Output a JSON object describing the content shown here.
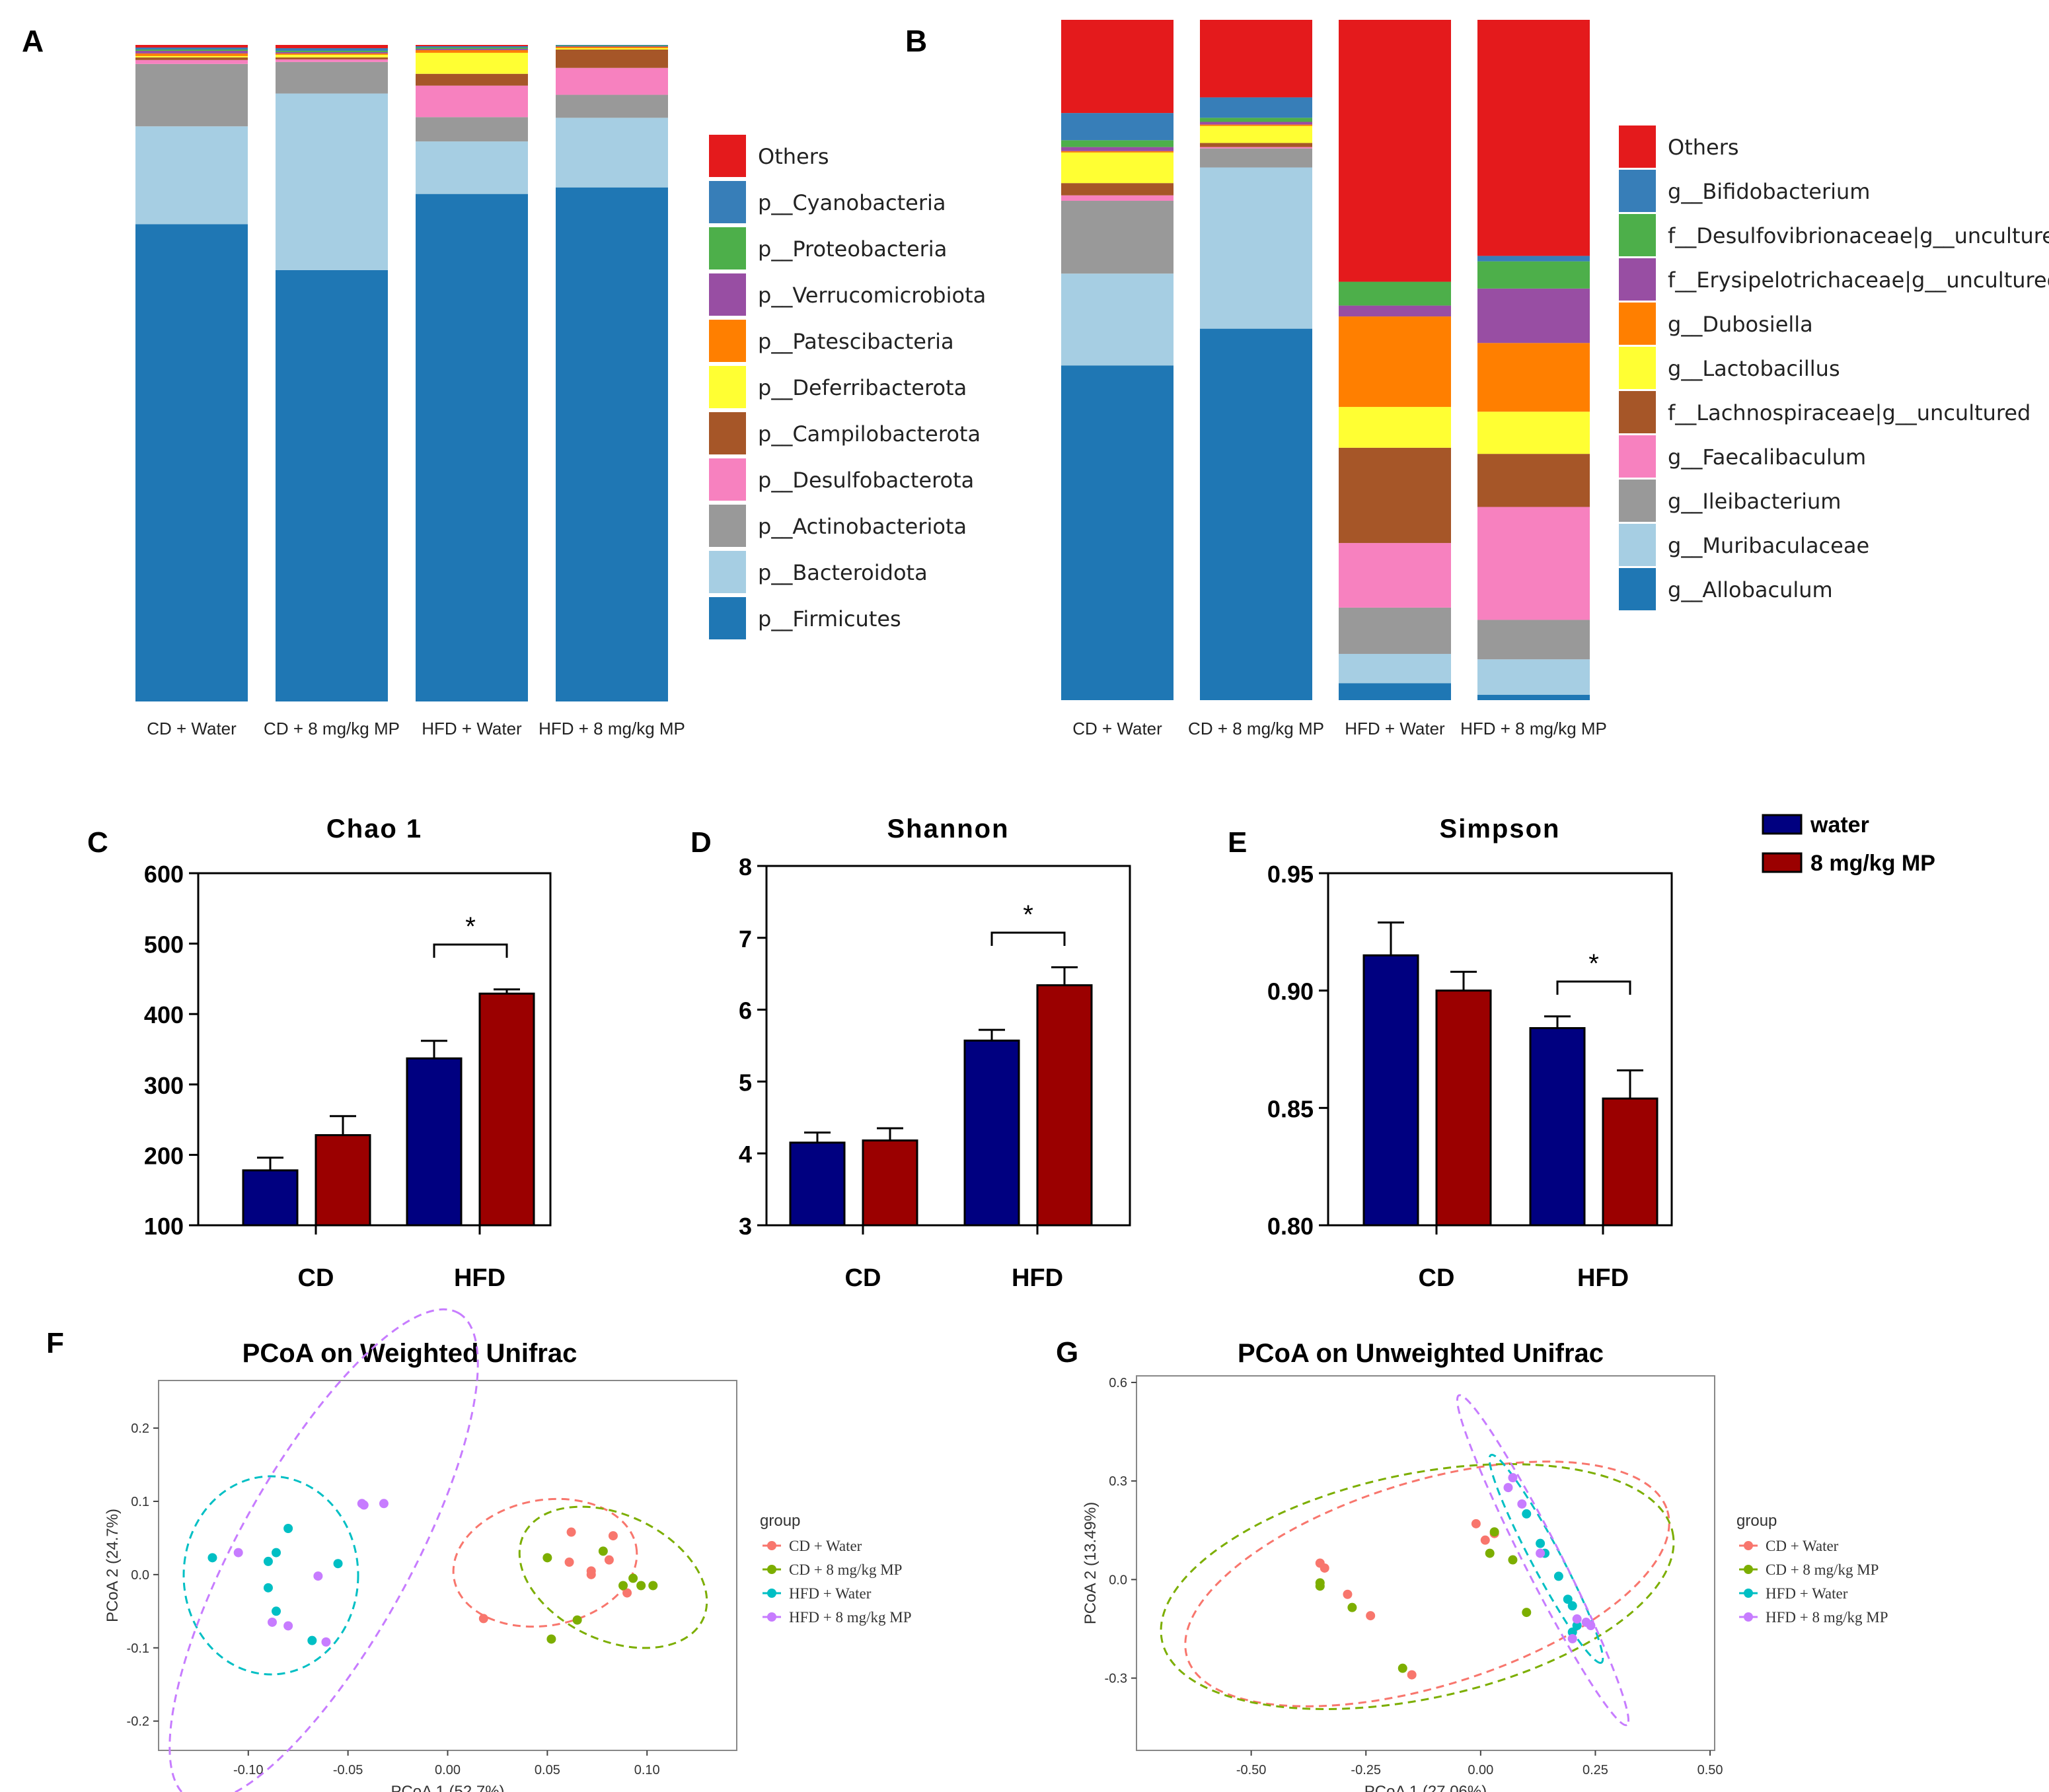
{
  "colors": {
    "water": "#000080",
    "mp": "#9b0000",
    "phylum": [
      "#1f77b4",
      "#a6cee3",
      "#999999",
      "#f781bf",
      "#a65628",
      "#ffff33",
      "#ff7f00",
      "#984ea3",
      "#4daf4a",
      "#377eb8",
      "#e41a1c"
    ],
    "genus": [
      "#1f77b4",
      "#a6cee3",
      "#999999",
      "#f781bf",
      "#a65628",
      "#ffff33",
      "#ff7f00",
      "#984ea3",
      "#4daf4a",
      "#377eb8",
      "#e41a1c"
    ],
    "pcoa": [
      "#f8766d",
      "#7cae00",
      "#00bfc4",
      "#c77cff"
    ]
  },
  "chart_data": [
    {
      "panel": "A",
      "type": "bar",
      "stacked": true,
      "categories": [
        "CD + Water",
        "CD + 8 mg/kg MP",
        "HFD + Water",
        "HFD + 8 mg/kg MP"
      ],
      "legend": [
        "Others",
        "p__Cyanobacteria",
        "p__Proteobacteria",
        "p__Verrucomicrobiota",
        "p__Patescibacteria",
        "p__Deferribacterota",
        "p__Campilobacterota",
        "p__Desulfobacterota",
        "p__Actinobacteriota",
        "p__Bacteroidota",
        "p__Firmicutes"
      ],
      "series": [
        {
          "name": "p__Firmicutes",
          "values": [
            0.727,
            0.657,
            0.773,
            0.783
          ]
        },
        {
          "name": "p__Bacteroidota",
          "values": [
            0.149,
            0.269,
            0.08,
            0.106
          ]
        },
        {
          "name": "p__Actinobacteriota",
          "values": [
            0.095,
            0.048,
            0.037,
            0.035
          ]
        },
        {
          "name": "p__Desulfobacterota",
          "values": [
            0.006,
            0.004,
            0.048,
            0.041
          ]
        },
        {
          "name": "p__Campilobacterota",
          "values": [
            0.004,
            0.003,
            0.018,
            0.028
          ]
        },
        {
          "name": "p__Deferribacterota",
          "values": [
            0.002,
            0.004,
            0.032,
            0.002
          ]
        },
        {
          "name": "p__Patescibacteria",
          "values": [
            0.004,
            0.002,
            0.004,
            0.002
          ]
        },
        {
          "name": "p__Verrucomicrobiota",
          "values": [
            0.004,
            0.002,
            0.002,
            0.001
          ]
        },
        {
          "name": "p__Proteobacteria",
          "values": [
            0.002,
            0.002,
            0.002,
            0.001
          ]
        },
        {
          "name": "p__Cyanobacteria",
          "values": [
            0.003,
            0.004,
            0.002,
            0.001
          ]
        },
        {
          "name": "Others",
          "values": [
            0.004,
            0.005,
            0.002,
            0.0
          ]
        }
      ],
      "ylim": [
        0,
        1
      ]
    },
    {
      "panel": "B",
      "type": "bar",
      "stacked": true,
      "categories": [
        "CD + Water",
        "CD + 8 mg/kg MP",
        "HFD + Water",
        "HFD + 8 mg/kg MP"
      ],
      "legend": [
        "Others",
        "g__Bifidobacterium",
        "f__Desulfovibrionaceae|g__uncultured",
        "f__Erysipelotrichaceae|g__uncultured",
        "g__Dubosiella",
        "g__Lactobacillus",
        "f__Lachnospiraceae|g__uncultured",
        "g__Faecalibaculum",
        "g__Ileibacterium",
        "g__Muribaculaceae",
        "g__Allobaculum"
      ],
      "series": [
        {
          "name": "g__Allobaculum",
          "values": [
            0.492,
            0.546,
            0.025,
            0.008
          ]
        },
        {
          "name": "g__Muribaculaceae",
          "values": [
            0.135,
            0.237,
            0.043,
            0.052
          ]
        },
        {
          "name": "g__Ileibacterium",
          "values": [
            0.107,
            0.028,
            0.068,
            0.058
          ]
        },
        {
          "name": "g__Faecalibaculum",
          "values": [
            0.008,
            0.002,
            0.095,
            0.166
          ]
        },
        {
          "name": "f__Lachnospiraceae|g__uncultured",
          "values": [
            0.018,
            0.006,
            0.14,
            0.078
          ]
        },
        {
          "name": "g__Lactobacillus",
          "values": [
            0.045,
            0.025,
            0.06,
            0.062
          ]
        },
        {
          "name": "g__Dubosiella",
          "values": [
            0.002,
            0.002,
            0.133,
            0.101
          ]
        },
        {
          "name": "f__Erysipelotrichaceae|g__uncultured",
          "values": [
            0.006,
            0.004,
            0.016,
            0.08
          ]
        },
        {
          "name": "f__Desulfovibrionaceae|g__uncultured",
          "values": [
            0.01,
            0.006,
            0.035,
            0.04
          ]
        },
        {
          "name": "g__Bifidobacterium",
          "values": [
            0.04,
            0.03,
            0.0,
            0.008
          ]
        },
        {
          "name": "Others",
          "values": [
            0.137,
            0.114,
            0.385,
            0.347
          ]
        }
      ],
      "ylim": [
        0,
        1
      ]
    },
    {
      "panel": "C",
      "type": "bar",
      "title": "Chao 1",
      "categories": [
        "CD",
        "HFD"
      ],
      "series": [
        {
          "name": "water",
          "values": [
            178,
            337
          ],
          "errors": [
            18,
            25
          ]
        },
        {
          "name": "8 mg/kg MP",
          "values": [
            228,
            429
          ],
          "errors": [
            27,
            6
          ]
        }
      ],
      "ylim": [
        100,
        600
      ],
      "yticks": [
        "100",
        "200",
        "300",
        "400",
        "500",
        "600"
      ],
      "annotation": "*"
    },
    {
      "panel": "D",
      "type": "bar",
      "title": "Shannon",
      "categories": [
        "CD",
        "HFD"
      ],
      "series": [
        {
          "name": "water",
          "values": [
            4.15,
            5.57
          ],
          "errors": [
            0.14,
            0.15
          ]
        },
        {
          "name": "8 mg/kg MP",
          "values": [
            4.18,
            6.34
          ],
          "errors": [
            0.17,
            0.25
          ]
        }
      ],
      "ylim": [
        3,
        8
      ],
      "yticks": [
        "3",
        "4",
        "5",
        "6",
        "7",
        "8"
      ],
      "annotation": "*"
    },
    {
      "panel": "E",
      "type": "bar",
      "title": "Simpson",
      "categories": [
        "CD",
        "HFD"
      ],
      "series": [
        {
          "name": "water",
          "values": [
            0.915,
            0.884
          ],
          "errors": [
            0.014,
            0.005
          ]
        },
        {
          "name": "8 mg/kg MP",
          "values": [
            0.9,
            0.854
          ],
          "errors": [
            0.008,
            0.012
          ]
        }
      ],
      "ylim": [
        0.8,
        0.95
      ],
      "yticks": [
        "0.80",
        "0.85",
        "0.90",
        "0.95"
      ],
      "annotation": "*",
      "legend": [
        "water",
        "8 mg/kg MP"
      ]
    },
    {
      "panel": "F",
      "type": "scatter",
      "title": "PCoA on Weighted Unifrac",
      "xlabel": "PCoA 1 (52.7%)",
      "ylabel": "PCoA 2 (24.7%)",
      "xlim": [
        -0.145,
        0.145
      ],
      "ylim": [
        -0.24,
        0.265
      ],
      "xticks": [
        "-0.10",
        "-0.05",
        "0.00",
        "0.05",
        "0.10"
      ],
      "yticks": [
        "-0.2",
        "-0.1",
        "0.0",
        "0.1",
        "0.2"
      ],
      "legend_title": "group",
      "groups": [
        "CD + Water",
        "CD + 8 mg/kg MP",
        "HFD + Water",
        "HFD + 8 mg/kg MP"
      ],
      "points": [
        [
          [
            0.062,
            0.058
          ],
          [
            0.083,
            0.053
          ],
          [
            0.061,
            0.017
          ],
          [
            0.072,
            0.005
          ],
          [
            0.081,
            0.02
          ],
          [
            0.072,
            0.0
          ],
          [
            0.09,
            -0.025
          ],
          [
            0.018,
            -0.06
          ]
        ],
        [
          [
            0.05,
            0.023
          ],
          [
            0.078,
            0.032
          ],
          [
            0.093,
            -0.005
          ],
          [
            0.088,
            -0.015
          ],
          [
            0.097,
            -0.015
          ],
          [
            0.103,
            -0.015
          ],
          [
            0.065,
            -0.062
          ],
          [
            0.052,
            -0.088
          ]
        ],
        [
          [
            -0.118,
            0.023
          ],
          [
            -0.08,
            0.063
          ],
          [
            -0.086,
            0.03
          ],
          [
            -0.09,
            0.018
          ],
          [
            -0.055,
            0.015
          ],
          [
            -0.09,
            -0.018
          ],
          [
            -0.086,
            -0.05
          ],
          [
            -0.068,
            -0.09
          ]
        ],
        [
          [
            -0.105,
            0.03
          ],
          [
            -0.043,
            0.097
          ],
          [
            -0.042,
            0.095
          ],
          [
            -0.032,
            0.097
          ],
          [
            -0.065,
            -0.002
          ],
          [
            -0.088,
            -0.065
          ],
          [
            -0.08,
            -0.07
          ],
          [
            -0.061,
            -0.092
          ]
        ]
      ]
    },
    {
      "panel": "G",
      "type": "scatter",
      "title": "PCoA on Unweighted Unifrac",
      "xlabel": "PCoA 1 (27.06%)",
      "ylabel": "PCoA 2 (13.49%)",
      "xlim": [
        -0.75,
        0.51
      ],
      "ylim": [
        -0.52,
        0.62
      ],
      "xticks": [
        "-0.50",
        "-0.25",
        "0.00",
        "0.25",
        "0.50"
      ],
      "yticks": [
        "-0.3",
        "0.0",
        "0.3",
        "0.6"
      ],
      "legend_title": "group",
      "groups": [
        "CD + Water",
        "CD + 8 mg/kg MP",
        "HFD + Water",
        "HFD + 8 mg/kg MP"
      ],
      "points": [
        [
          [
            -0.35,
            0.05
          ],
          [
            -0.34,
            0.035
          ],
          [
            -0.29,
            -0.045
          ],
          [
            -0.24,
            -0.11
          ],
          [
            -0.01,
            0.17
          ],
          [
            0.01,
            0.12
          ],
          [
            0.03,
            0.14
          ],
          [
            -0.15,
            -0.29
          ]
        ],
        [
          [
            -0.35,
            -0.01
          ],
          [
            -0.35,
            -0.02
          ],
          [
            -0.28,
            -0.085
          ],
          [
            -0.17,
            -0.27
          ],
          [
            0.03,
            0.145
          ],
          [
            0.02,
            0.08
          ],
          [
            0.07,
            0.06
          ],
          [
            0.1,
            -0.1
          ]
        ],
        [
          [
            0.1,
            0.2
          ],
          [
            0.13,
            0.11
          ],
          [
            0.14,
            0.08
          ],
          [
            0.17,
            0.01
          ],
          [
            0.19,
            -0.06
          ],
          [
            0.2,
            -0.08
          ],
          [
            0.21,
            -0.14
          ],
          [
            0.2,
            -0.16
          ]
        ],
        [
          [
            0.06,
            0.28
          ],
          [
            0.07,
            0.31
          ],
          [
            0.09,
            0.23
          ],
          [
            0.13,
            0.08
          ],
          [
            0.21,
            -0.12
          ],
          [
            0.23,
            -0.13
          ],
          [
            0.24,
            -0.14
          ],
          [
            0.2,
            -0.18
          ]
        ]
      ]
    }
  ],
  "panel_labels": [
    "A",
    "B",
    "C",
    "D",
    "E",
    "F",
    "G"
  ],
  "group_axis_labels": [
    "CD",
    "HFD"
  ]
}
